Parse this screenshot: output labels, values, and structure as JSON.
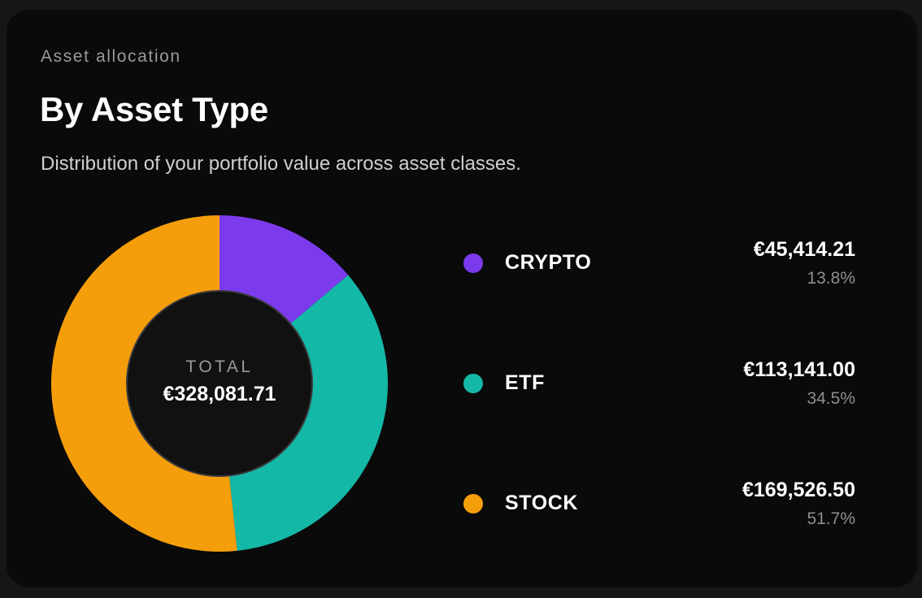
{
  "card": {
    "eyebrow": "Asset allocation",
    "title": "By Asset Type",
    "subtitle": "Distribution of your portfolio value across asset classes."
  },
  "center": {
    "caption": "TOTAL",
    "total": "€328,081.71"
  },
  "colors": {
    "crypto": "#7c3aed",
    "etf": "#14b8a6",
    "stock": "#f59e0b",
    "card_bg": "#0a0a0a",
    "page_bg": "#161616",
    "center_fill": "#111111",
    "center_border": "#3a3a3e"
  },
  "legend": [
    {
      "label": "CRYPTO",
      "value": "€45,414.21",
      "percent": "13.8%",
      "color": "#7c3aed"
    },
    {
      "label": "ETF",
      "value": "€113,141.00",
      "percent": "34.5%",
      "color": "#14b8a6"
    },
    {
      "label": "STOCK",
      "value": "€169,526.50",
      "percent": "51.7%",
      "color": "#f59e0b"
    }
  ],
  "chart_data": {
    "type": "pie",
    "variant": "donut",
    "title": "By Asset Type",
    "subtitle": "Distribution of your portfolio value across asset classes.",
    "categories": [
      "CRYPTO",
      "ETF",
      "STOCK"
    ],
    "values": [
      45414.21,
      113141.0,
      169526.5
    ],
    "percentages": [
      13.8,
      34.5,
      51.7
    ],
    "colors": [
      "#7c3aed",
      "#14b8a6",
      "#f59e0b"
    ],
    "total": 328081.71,
    "currency": "EUR",
    "center_label": "TOTAL",
    "start_angle_deg": 0,
    "direction": "clockwise",
    "legend_position": "right"
  }
}
